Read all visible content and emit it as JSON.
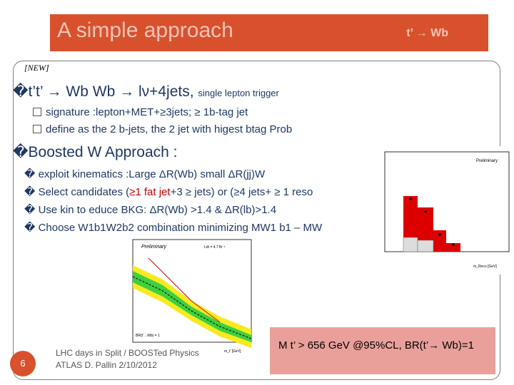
{
  "header": {
    "title": "A simple approach",
    "right_label": "t’ → Wb"
  },
  "new_tag": "[NEW]",
  "main_bullet": {
    "marker": "�",
    "text": "t’t’ → Wb Wb → lν+4jets,",
    "note": "single lepton trigger"
  },
  "sub_items": [
    "signature :lepton+MET+≥3jets; ≥ 1b-tag jet",
    "define as the 2 b-jets, the 2 jet with higest btag Prob"
  ],
  "boosted": {
    "marker": "�",
    "text": "Boosted W Approach :"
  },
  "boosted_items": [
    {
      "marker": "�",
      "text": "exploit kinematics :Large ΔR(Wb) small ΔR(jj)W"
    },
    {
      "marker": "�",
      "pre": "Select candidates (",
      "red": "≥1 fat jet",
      "post": "+3 ≥ jets) or (≥4 jets+ ≥ 1 reso"
    },
    {
      "marker": "�",
      "text": "Use kin to educe BKG: ΔR(Wb) >1.4 & ΔR(lb)>1.4"
    },
    {
      "marker": "�",
      "text": "Choose W1b1W2b2 combination minimizing MW1 b1 – MW"
    }
  ],
  "footer": {
    "line1": "LHC days in Split / BOOSTed Physics",
    "line2": "ATLAS D. Pallin 2/10/2012"
  },
  "page_number": "6",
  "result": {
    "text": "M t’ > 656 GeV @95%CL, BR(t’→ Wb)=1"
  },
  "plot1": {
    "preliminary": "Preliminary",
    "xlabel": "m_Reco [GeV]"
  },
  "plot2": {
    "preliminary": "Preliminary",
    "lumi": "Ldt = 4.7 fb⁻¹",
    "brlabel": "BR(t’→Wb) = 1",
    "xlabel": "m_t’ [GeV]"
  },
  "colors": {
    "accent": "#d9512c",
    "text": "#1f3864",
    "result_bg": "#e9a09a"
  }
}
